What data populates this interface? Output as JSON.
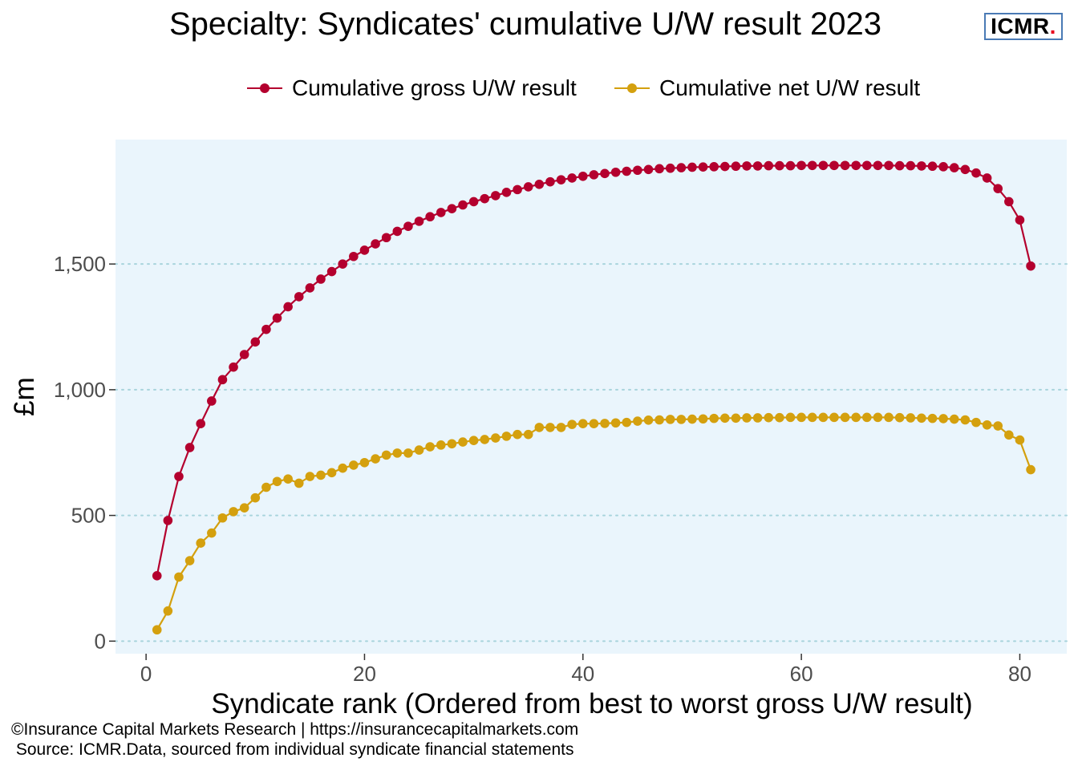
{
  "title": "Specialty: Syndicates' cumulative  U/W result 2023",
  "logo": {
    "text": "ICMR",
    "dot": "."
  },
  "footer": {
    "line1": "©Insurance Capital Markets Research | https://insurancecapitalmarkets.com",
    "line2": " Source: ICMR.Data, sourced from individual syndicate financial statements"
  },
  "colors": {
    "gross": "#b4002e",
    "net": "#d4a00e",
    "panel": "#eaf5fc",
    "grid": "#a8d4dc"
  },
  "chart_data": {
    "type": "line",
    "xlabel": "Syndicate rank (Ordered from best to worst gross U/W result)",
    "ylabel": "£m",
    "xlim": [
      -2.8,
      84.3
    ],
    "ylim": [
      -50,
      1995
    ],
    "x_ticks": [
      0,
      20,
      40,
      60,
      80
    ],
    "y_ticks": [
      0,
      500,
      1000,
      1500
    ],
    "x_tick_labels": [
      "0",
      "20",
      "40",
      "60",
      "80"
    ],
    "y_tick_labels": [
      "0",
      "500",
      "1,000",
      "1,500"
    ],
    "grid": "horizontal dotted",
    "legend_position": "top",
    "x": [
      1,
      2,
      3,
      4,
      5,
      6,
      7,
      8,
      9,
      10,
      11,
      12,
      13,
      14,
      15,
      16,
      17,
      18,
      19,
      20,
      21,
      22,
      23,
      24,
      25,
      26,
      27,
      28,
      29,
      30,
      31,
      32,
      33,
      34,
      35,
      36,
      37,
      38,
      39,
      40,
      41,
      42,
      43,
      44,
      45,
      46,
      47,
      48,
      49,
      50,
      51,
      52,
      53,
      54,
      55,
      56,
      57,
      58,
      59,
      60,
      61,
      62,
      63,
      64,
      65,
      66,
      67,
      68,
      69,
      70,
      71,
      72,
      73,
      74,
      75,
      76,
      77,
      78,
      79,
      80,
      81
    ],
    "series": [
      {
        "name": "Cumulative gross U/W result",
        "color": "#b4002e",
        "values": [
          260,
          480,
          655,
          770,
          865,
          955,
          1040,
          1090,
          1140,
          1190,
          1240,
          1285,
          1330,
          1370,
          1405,
          1440,
          1470,
          1500,
          1530,
          1555,
          1580,
          1605,
          1630,
          1650,
          1670,
          1688,
          1705,
          1720,
          1735,
          1748,
          1760,
          1772,
          1785,
          1796,
          1807,
          1817,
          1827,
          1835,
          1842,
          1849,
          1855,
          1860,
          1865,
          1869,
          1873,
          1876,
          1879,
          1881,
          1883,
          1885,
          1886,
          1887,
          1888,
          1889,
          1890,
          1890,
          1891,
          1891,
          1891,
          1892,
          1892,
          1892,
          1892,
          1892,
          1892,
          1892,
          1892,
          1892,
          1891,
          1891,
          1890,
          1889,
          1887,
          1883,
          1876,
          1862,
          1842,
          1800,
          1748,
          1675,
          1492
        ]
      },
      {
        "name": "Cumulative net U/W result",
        "color": "#d4a00e",
        "values": [
          45,
          120,
          255,
          320,
          390,
          430,
          490,
          515,
          530,
          570,
          612,
          635,
          645,
          628,
          655,
          660,
          670,
          688,
          700,
          710,
          725,
          740,
          748,
          748,
          760,
          773,
          780,
          785,
          792,
          798,
          802,
          808,
          815,
          822,
          822,
          850,
          850,
          850,
          862,
          865,
          865,
          866,
          868,
          870,
          875,
          879,
          880,
          882,
          882,
          883,
          884,
          886,
          887,
          887,
          888,
          888,
          889,
          889,
          890,
          890,
          890,
          890,
          890,
          890,
          890,
          890,
          890,
          890,
          889,
          888,
          887,
          886,
          885,
          883,
          880,
          870,
          860,
          856,
          820,
          800,
          682
        ]
      }
    ]
  }
}
